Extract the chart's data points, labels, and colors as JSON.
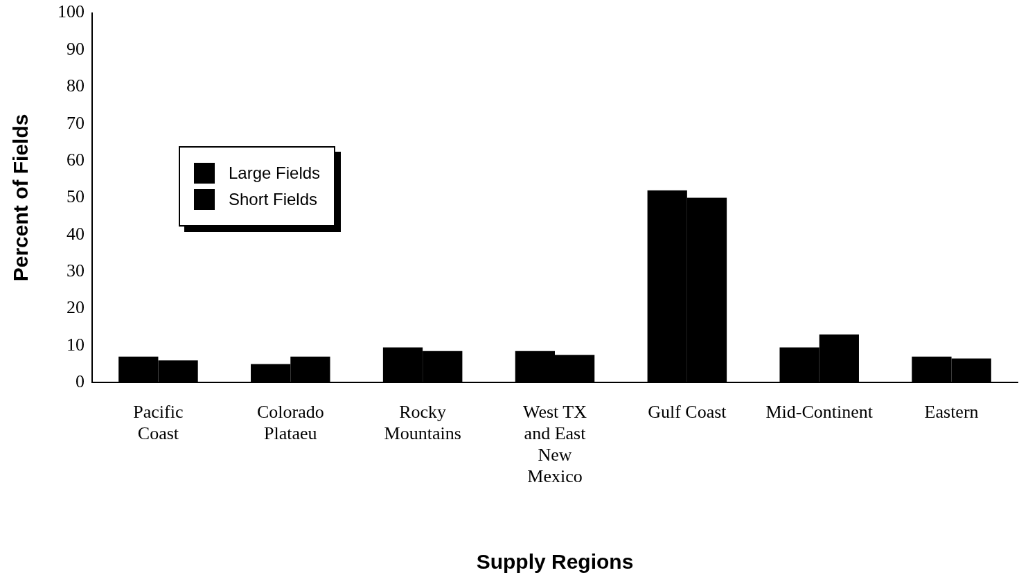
{
  "chart_data": {
    "type": "bar",
    "xlabel": "Supply Regions",
    "ylabel": "Percent of Fields",
    "categories": [
      "Pacific Coast",
      "Colorado Plataeu",
      "Rocky Mountains",
      "West TX and East New Mexico",
      "Gulf Coast",
      "Mid-Continent",
      "Eastern"
    ],
    "series": [
      {
        "name": "Large Fields",
        "color": "#000000",
        "values": [
          7,
          5,
          9.5,
          8.5,
          52,
          9.5,
          7
        ]
      },
      {
        "name": "Short Fields",
        "color": "#000000",
        "values": [
          6,
          7,
          8.5,
          7.5,
          50,
          13,
          6.5
        ]
      }
    ],
    "ylim": [
      0,
      100
    ],
    "yticks": [
      0,
      10,
      20,
      30,
      40,
      50,
      60,
      70,
      80,
      90,
      100
    ],
    "grid": false,
    "legend": "top left"
  }
}
